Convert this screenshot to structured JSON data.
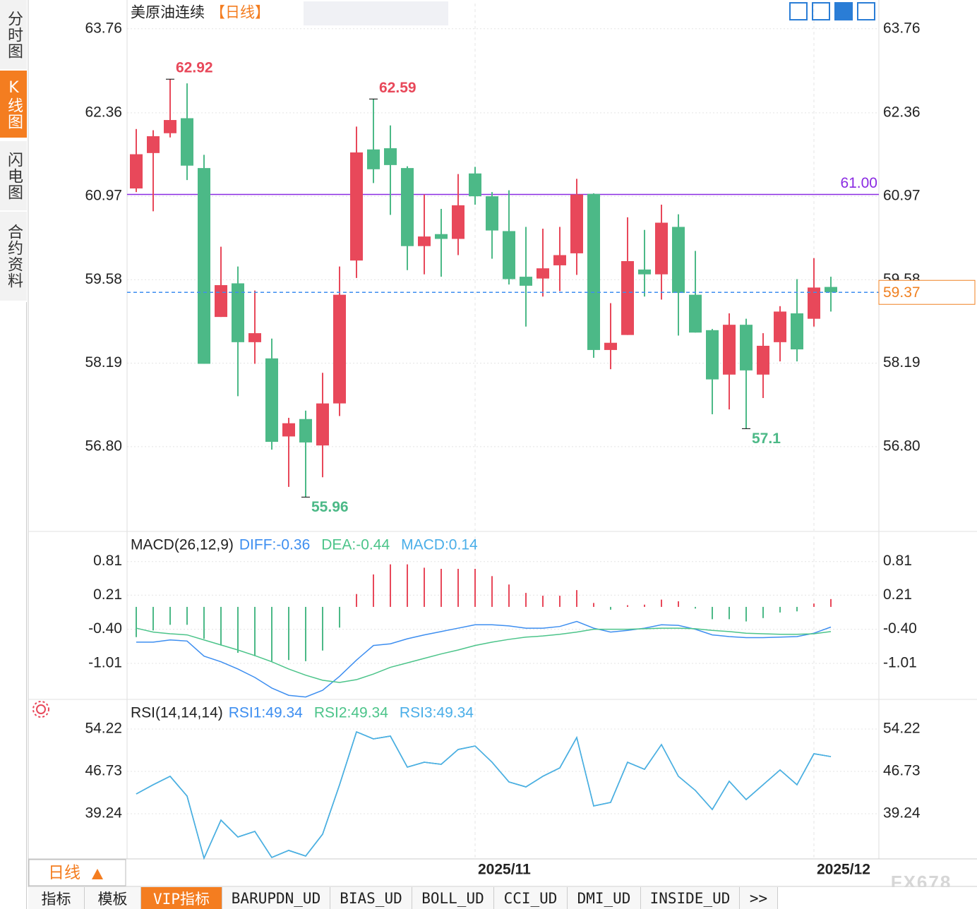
{
  "ui": {
    "sidebar": [
      "分时图",
      "K线图",
      "闪电图",
      "合约资料"
    ],
    "period": "日线",
    "tabs": [
      "指标",
      "模板",
      "VIP指标",
      "BARUPDN_UD",
      "BIAS_UD",
      "BOLL_UD",
      "CCI_UD",
      "DMI_UD",
      "INSIDE_UD",
      ">>"
    ],
    "watermark": "FX678"
  },
  "chart_data": [
    {
      "type": "candlestick",
      "title": "美原油连续",
      "subtitle": "【日线】",
      "up_color": "#e8485a",
      "down_color": "#4cb987",
      "open": [
        61.1,
        61.69,
        62.02,
        62.27,
        61.44,
        58.96,
        59.52,
        58.54,
        58.27,
        56.97,
        57.26,
        56.82,
        57.52,
        59.9,
        61.75,
        61.77,
        61.44,
        60.14,
        60.34,
        60.26,
        61.35,
        60.97,
        60.39,
        59.63,
        59.6,
        59.82,
        60.02,
        61.01,
        58.41,
        58.66,
        59.75,
        59.67,
        60.46,
        59.33,
        58.74,
        58.0,
        58.83,
        58.0,
        58.54,
        59.02,
        58.93,
        59.46
      ],
      "high": [
        62.09,
        62.07,
        62.92,
        62.85,
        61.66,
        60.13,
        59.8,
        59.4,
        58.6,
        57.28,
        57.4,
        58.03,
        59.8,
        62.13,
        62.59,
        62.15,
        61.47,
        61.0,
        60.76,
        61.34,
        61.46,
        61.04,
        61.07,
        60.46,
        60.43,
        60.46,
        61.26,
        61.02,
        59.19,
        60.62,
        60.41,
        60.83,
        60.67,
        60.06,
        58.76,
        59.02,
        58.93,
        58.69,
        59.14,
        59.59,
        59.94,
        59.63
      ],
      "low": [
        61.04,
        60.72,
        61.95,
        61.24,
        58.18,
        58.96,
        57.64,
        58.18,
        56.75,
        56.13,
        55.96,
        56.29,
        57.31,
        59.61,
        61.19,
        60.66,
        59.74,
        59.67,
        59.63,
        59.99,
        60.83,
        59.93,
        59.5,
        58.8,
        59.3,
        59.39,
        59.66,
        58.28,
        58.09,
        58.66,
        59.3,
        59.25,
        58.65,
        58.7,
        57.34,
        57.42,
        57.1,
        57.61,
        58.22,
        58.22,
        58.8,
        59.05
      ],
      "close": [
        61.67,
        61.97,
        62.24,
        61.48,
        58.18,
        59.49,
        58.54,
        58.69,
        56.88,
        57.19,
        56.87,
        57.52,
        59.33,
        61.7,
        61.42,
        61.49,
        60.14,
        60.3,
        60.26,
        60.82,
        60.97,
        60.4,
        59.59,
        59.48,
        59.77,
        59.99,
        61.0,
        58.41,
        58.53,
        59.89,
        59.67,
        60.53,
        59.36,
        58.7,
        57.92,
        58.83,
        58.07,
        58.48,
        59.05,
        58.42,
        59.45,
        59.37
      ],
      "hlines": [
        {
          "value": 61,
          "label": "61.00",
          "color": "#8a2be2"
        }
      ],
      "last_price_color": "#3d8ef0",
      "last_label_color": "#f08020",
      "ylim": [
        55.4,
        64.18
      ],
      "yticks": [
        {
          "value": 56.8,
          "label": "56.80"
        },
        58.19,
        59.58,
        60.97,
        62.36,
        63.76
      ],
      "grid": true
    },
    {
      "type": "macd",
      "title": "MACD(26,12,9)",
      "up_color": "#e8485a",
      "down_color": "#4cb987",
      "series": [
        {
          "name": "DIFF:-0.36",
          "color": "#3d8ef0",
          "style": "line",
          "values": [
            -0.63,
            -0.63,
            -0.59,
            -0.61,
            -0.88,
            -0.98,
            -1.11,
            -1.26,
            -1.45,
            -1.58,
            -1.61,
            -1.49,
            -1.24,
            -0.95,
            -0.69,
            -0.66,
            -0.57,
            -0.5,
            -0.44,
            -0.38,
            -0.32,
            -0.32,
            -0.34,
            -0.38,
            -0.38,
            -0.35,
            -0.26,
            -0.38,
            -0.45,
            -0.42,
            -0.38,
            -0.32,
            -0.33,
            -0.4,
            -0.5,
            -0.53,
            -0.55,
            -0.55,
            -0.54,
            -0.53,
            -0.47,
            -0.36
          ]
        },
        {
          "name": "DEA:-0.44",
          "color": "#4cc48a",
          "style": "line",
          "values": [
            -0.38,
            -0.45,
            -0.48,
            -0.5,
            -0.59,
            -0.68,
            -0.77,
            -0.87,
            -0.98,
            -1.11,
            -1.22,
            -1.31,
            -1.35,
            -1.3,
            -1.2,
            -1.08,
            -1.0,
            -0.92,
            -0.84,
            -0.77,
            -0.69,
            -0.63,
            -0.58,
            -0.54,
            -0.52,
            -0.49,
            -0.45,
            -0.4,
            -0.4,
            -0.4,
            -0.39,
            -0.38,
            -0.38,
            -0.39,
            -0.42,
            -0.44,
            -0.47,
            -0.48,
            -0.49,
            -0.49,
            -0.48,
            -0.44
          ]
        },
        {
          "name": "MACD:0.14",
          "color": "#4aaee8",
          "style": "histogram",
          "values": [
            -0.54,
            -0.42,
            -0.32,
            -0.32,
            -0.57,
            -0.69,
            -0.82,
            -0.88,
            -0.97,
            -0.95,
            -0.97,
            -0.78,
            -0.37,
            0.23,
            0.58,
            0.76,
            0.76,
            0.7,
            0.68,
            0.68,
            0.68,
            0.55,
            0.4,
            0.25,
            0.2,
            0.2,
            0.3,
            0.07,
            -0.05,
            0.03,
            0.04,
            0.13,
            0.1,
            -0.03,
            -0.22,
            -0.22,
            -0.26,
            -0.2,
            -0.1,
            -0.08,
            0.06,
            0.14
          ]
        }
      ],
      "ylim": [
        -1.64,
        1.26
      ],
      "yticks": [
        -1.01,
        {
          "value": -0.4,
          "label": "-0.40"
        },
        0.21,
        0.81
      ],
      "grid": true
    },
    {
      "type": "line",
      "title": "RSI(14,14,14)",
      "categories": [
        null,
        null,
        null,
        null,
        null,
        null,
        null,
        null,
        null,
        null,
        null,
        null,
        null,
        null,
        null,
        null,
        null,
        null,
        null,
        null,
        "2025/11",
        null,
        null,
        null,
        null,
        null,
        null,
        null,
        null,
        null,
        null,
        null,
        null,
        null,
        null,
        null,
        null,
        null,
        null,
        null,
        "2025/12",
        null
      ],
      "series": [
        {
          "name": "RSI1:49.34",
          "color": "#3d8ef0",
          "values": [
            42.73,
            44.36,
            45.86,
            42.36,
            31.37,
            38.11,
            35.12,
            36.12,
            31.5,
            32.75,
            31.75,
            35.62,
            44.36,
            53.72,
            52.47,
            52.97,
            47.48,
            48.35,
            47.98,
            50.6,
            51.22,
            48.35,
            44.86,
            43.98,
            45.86,
            47.35,
            52.72,
            40.61,
            41.24,
            48.35,
            47.1,
            51.47,
            45.86,
            43.36,
            39.99,
            44.98,
            41.74,
            44.36,
            46.98,
            44.36,
            49.85,
            49.34
          ]
        },
        {
          "name": "RSI2:49.34",
          "color": "#4cc48a",
          "values": [
            42.73,
            44.36,
            45.86,
            42.36,
            31.37,
            38.11,
            35.12,
            36.12,
            31.5,
            32.75,
            31.75,
            35.62,
            44.36,
            53.72,
            52.47,
            52.97,
            47.48,
            48.35,
            47.98,
            50.6,
            51.22,
            48.35,
            44.86,
            43.98,
            45.86,
            47.35,
            52.72,
            40.61,
            41.24,
            48.35,
            47.1,
            51.47,
            45.86,
            43.36,
            39.99,
            44.98,
            41.74,
            44.36,
            46.98,
            44.36,
            49.85,
            49.34
          ]
        },
        {
          "name": "RSI3:49.34",
          "color": "#4aaee8",
          "values": [
            42.73,
            44.36,
            45.86,
            42.36,
            31.37,
            38.11,
            35.12,
            36.12,
            31.5,
            32.75,
            31.75,
            35.62,
            44.36,
            53.72,
            52.47,
            52.97,
            47.48,
            48.35,
            47.98,
            50.6,
            51.22,
            48.35,
            44.86,
            43.98,
            45.86,
            47.35,
            52.72,
            40.61,
            41.24,
            48.35,
            47.1,
            51.47,
            45.86,
            43.36,
            39.99,
            44.98,
            41.74,
            44.36,
            46.98,
            44.36,
            49.85,
            49.34
          ]
        }
      ],
      "ylim": [
        31.25,
        58.96
      ],
      "yticks": [
        39.24,
        46.73,
        54.22
      ],
      "grid": true
    }
  ]
}
